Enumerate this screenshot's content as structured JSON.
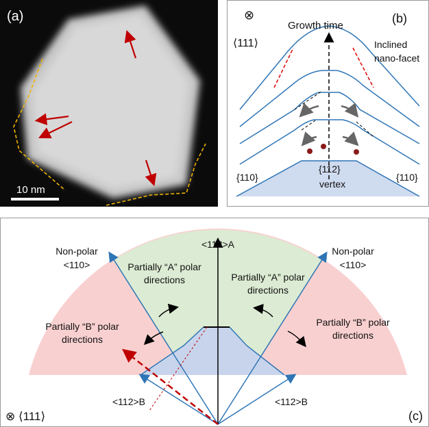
{
  "panel_a": {
    "label": "(a)",
    "scale_bar": "10 nm"
  },
  "panel_b": {
    "label": "(b)",
    "symbol": "⊗",
    "zone_axis": "⟨111⟩",
    "axis_label": "Growth time",
    "annotation_line1": "Inclined",
    "annotation_line2": "nano-facet",
    "left_facet": "{110}",
    "vertex_facet": "{112}",
    "vertex_label": "vertex",
    "right_facet": "{110}"
  },
  "panel_c": {
    "label": "(c)",
    "top_direction": "<112>A",
    "left_nonpolar": {
      "line1": "Non-polar",
      "line2": "<110>"
    },
    "right_nonpolar": {
      "line1": "Non-polar",
      "line2": "<110>"
    },
    "left_a_polar": {
      "line1": "Partially “A” polar",
      "line2": "directions"
    },
    "right_a_polar": {
      "line1": "Partially “A” polar",
      "line2": "directions"
    },
    "left_b_polar": {
      "line1": "Partially “B” polar",
      "line2": "directions"
    },
    "right_b_polar": {
      "line1": "Partially “B” polar",
      "line2": "directions"
    },
    "left_b_direction": "<112>B",
    "right_b_direction": "<112>B",
    "zone_axis": "⊗ ⟨111⟩"
  }
}
